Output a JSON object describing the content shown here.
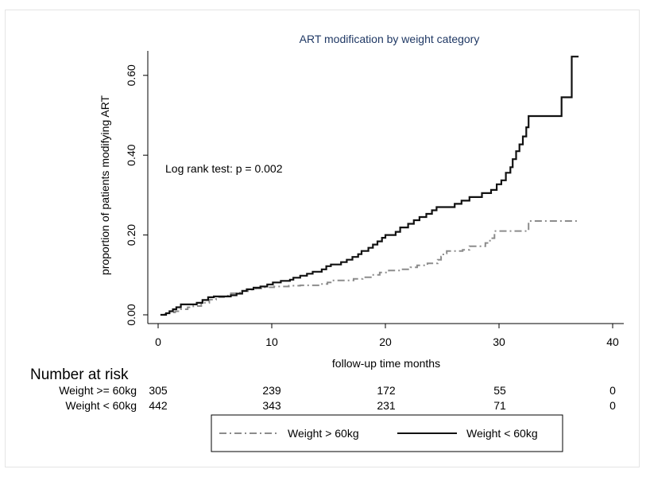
{
  "chart_data": {
    "type": "line",
    "subtype": "kaplan-meier step (cumulative incidence)",
    "title": "ART modification by weight category",
    "xlabel": "follow-up time months",
    "ylabel": "proportion of patients modifying ART",
    "xlim": [
      0,
      40
    ],
    "ylim": [
      0,
      0.67
    ],
    "xticks": [
      "0",
      "10",
      "20",
      "30",
      "40"
    ],
    "yticks": [
      "0.00",
      "0.20",
      "0.40",
      "0.60"
    ],
    "xtick_values": [
      0,
      10,
      20,
      30,
      40
    ],
    "ytick_values": [
      0,
      0.2,
      0.4,
      0.6
    ],
    "annotation": "Log rank test: p = 0.002",
    "series": [
      {
        "name": "Weight > 60kg",
        "color": "#8c8c8c",
        "style": "dash-dot",
        "points": [
          [
            0.2,
            0
          ],
          [
            0.6,
            0.002
          ],
          [
            1.0,
            0.006
          ],
          [
            1.5,
            0.009
          ],
          [
            2.0,
            0.014
          ],
          [
            2.6,
            0.019
          ],
          [
            3.1,
            0.022
          ],
          [
            3.8,
            0.03
          ],
          [
            4.5,
            0.038
          ],
          [
            5.1,
            0.044
          ],
          [
            5.8,
            0.048
          ],
          [
            6.4,
            0.054
          ],
          [
            7.2,
            0.059
          ],
          [
            7.9,
            0.063
          ],
          [
            8.6,
            0.066
          ],
          [
            9.3,
            0.069
          ],
          [
            10.2,
            0.071
          ],
          [
            11.5,
            0.073
          ],
          [
            12.5,
            0.074
          ],
          [
            14.2,
            0.077
          ],
          [
            14.9,
            0.081
          ],
          [
            15.3,
            0.086
          ],
          [
            17.2,
            0.09
          ],
          [
            18.0,
            0.094
          ],
          [
            18.8,
            0.1
          ],
          [
            19.5,
            0.106
          ],
          [
            20.3,
            0.111
          ],
          [
            21.3,
            0.114
          ],
          [
            22.2,
            0.119
          ],
          [
            22.8,
            0.124
          ],
          [
            23.7,
            0.129
          ],
          [
            24.6,
            0.138
          ],
          [
            24.9,
            0.146
          ],
          [
            25.1,
            0.154
          ],
          [
            25.4,
            0.16
          ],
          [
            26.8,
            0.163
          ],
          [
            27.4,
            0.172
          ],
          [
            28.8,
            0.18
          ],
          [
            29.2,
            0.192
          ],
          [
            29.6,
            0.21
          ],
          [
            32.6,
            0.235
          ],
          [
            37.0,
            0.235
          ]
        ]
      },
      {
        "name": "Weight < 60kg",
        "color": "#111111",
        "style": "solid",
        "points": [
          [
            0.2,
            0
          ],
          [
            0.7,
            0.004
          ],
          [
            1.0,
            0.009
          ],
          [
            1.3,
            0.014
          ],
          [
            1.6,
            0.019
          ],
          [
            2.0,
            0.026
          ],
          [
            3.4,
            0.03
          ],
          [
            3.9,
            0.037
          ],
          [
            4.4,
            0.044
          ],
          [
            4.9,
            0.046
          ],
          [
            6.4,
            0.049
          ],
          [
            6.9,
            0.053
          ],
          [
            7.4,
            0.06
          ],
          [
            7.8,
            0.064
          ],
          [
            8.4,
            0.068
          ],
          [
            9.0,
            0.071
          ],
          [
            9.6,
            0.076
          ],
          [
            10.1,
            0.081
          ],
          [
            10.8,
            0.085
          ],
          [
            11.6,
            0.088
          ],
          [
            11.9,
            0.093
          ],
          [
            12.5,
            0.098
          ],
          [
            13.1,
            0.103
          ],
          [
            13.6,
            0.108
          ],
          [
            14.4,
            0.114
          ],
          [
            14.8,
            0.122
          ],
          [
            15.2,
            0.126
          ],
          [
            16.1,
            0.132
          ],
          [
            16.6,
            0.138
          ],
          [
            17.1,
            0.145
          ],
          [
            17.6,
            0.152
          ],
          [
            17.9,
            0.16
          ],
          [
            18.5,
            0.168
          ],
          [
            18.9,
            0.176
          ],
          [
            19.3,
            0.184
          ],
          [
            19.7,
            0.193
          ],
          [
            20.0,
            0.2
          ],
          [
            20.9,
            0.208
          ],
          [
            21.3,
            0.219
          ],
          [
            22.0,
            0.228
          ],
          [
            22.5,
            0.237
          ],
          [
            23.0,
            0.245
          ],
          [
            23.6,
            0.253
          ],
          [
            24.1,
            0.262
          ],
          [
            24.5,
            0.27
          ],
          [
            26.1,
            0.278
          ],
          [
            26.7,
            0.286
          ],
          [
            27.4,
            0.295
          ],
          [
            28.5,
            0.305
          ],
          [
            29.3,
            0.313
          ],
          [
            29.8,
            0.327
          ],
          [
            30.2,
            0.337
          ],
          [
            30.6,
            0.356
          ],
          [
            31.0,
            0.37
          ],
          [
            31.2,
            0.39
          ],
          [
            31.5,
            0.41
          ],
          [
            31.8,
            0.427
          ],
          [
            32.1,
            0.447
          ],
          [
            32.4,
            0.47
          ],
          [
            32.6,
            0.498
          ],
          [
            35.5,
            0.545
          ],
          [
            36.4,
            0.647
          ],
          [
            37.0,
            0.647
          ]
        ]
      }
    ],
    "risk_table": {
      "title": "Number at risk",
      "rows": [
        {
          "label": "Weight >= 60kg",
          "values": [
            "305",
            "239",
            "172",
            "55",
            "0"
          ]
        },
        {
          "label": "Weight < 60kg",
          "values": [
            "442",
            "343",
            "231",
            "71",
            "0"
          ]
        }
      ]
    },
    "legend": {
      "placement": "bottom-center",
      "items": [
        {
          "label": "Weight > 60kg",
          "color": "#8c8c8c",
          "style": "dash-dot"
        },
        {
          "label": "Weight < 60kg",
          "color": "#111111",
          "style": "solid"
        }
      ]
    }
  }
}
